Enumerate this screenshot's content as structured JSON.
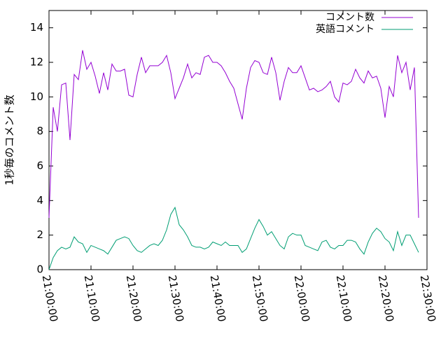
{
  "chart_data": {
    "type": "line",
    "y_label": "1秒毎のコメント数",
    "x": [
      "21:00:00",
      "21:01:00",
      "21:02:00",
      "21:03:00",
      "21:04:00",
      "21:05:00",
      "21:06:00",
      "21:07:00",
      "21:08:00",
      "21:09:00",
      "21:10:00",
      "21:11:00",
      "21:12:00",
      "21:13:00",
      "21:14:00",
      "21:15:00",
      "21:16:00",
      "21:17:00",
      "21:18:00",
      "21:19:00",
      "21:20:00",
      "21:21:00",
      "21:22:00",
      "21:23:00",
      "21:24:00",
      "21:25:00",
      "21:26:00",
      "21:27:00",
      "21:28:00",
      "21:29:00",
      "21:30:00",
      "21:31:00",
      "21:32:00",
      "21:33:00",
      "21:34:00",
      "21:35:00",
      "21:36:00",
      "21:37:00",
      "21:38:00",
      "21:39:00",
      "21:40:00",
      "21:41:00",
      "21:42:00",
      "21:43:00",
      "21:44:00",
      "21:45:00",
      "21:46:00",
      "21:47:00",
      "21:48:00",
      "21:49:00",
      "21:50:00",
      "21:51:00",
      "21:52:00",
      "21:53:00",
      "21:54:00",
      "21:55:00",
      "21:56:00",
      "21:57:00",
      "21:58:00",
      "21:59:00",
      "22:00:00",
      "22:01:00",
      "22:02:00",
      "22:03:00",
      "22:04:00",
      "22:05:00",
      "22:06:00",
      "22:07:00",
      "22:08:00",
      "22:09:00",
      "22:10:00",
      "22:11:00",
      "22:12:00",
      "22:13:00",
      "22:14:00",
      "22:15:00",
      "22:16:00",
      "22:17:00",
      "22:18:00",
      "22:19:00",
      "22:20:00",
      "22:21:00",
      "22:22:00",
      "22:23:00",
      "22:24:00",
      "22:25:00",
      "22:26:00",
      "22:27:00",
      "22:28:00"
    ],
    "series": [
      {
        "name": "コメント数",
        "color": "#9400d3",
        "values": [
          3.0,
          9.4,
          8.0,
          10.7,
          10.8,
          7.5,
          11.3,
          11.0,
          12.7,
          11.6,
          12.0,
          11.2,
          10.2,
          11.4,
          10.4,
          11.9,
          11.5,
          11.5,
          11.6,
          10.1,
          10.0,
          11.3,
          12.3,
          11.4,
          11.8,
          11.8,
          11.8,
          12.0,
          12.4,
          11.4,
          9.9,
          10.5,
          11.1,
          11.9,
          11.1,
          11.4,
          11.3,
          12.3,
          12.4,
          12.0,
          12.0,
          11.8,
          11.4,
          10.9,
          10.5,
          9.6,
          8.7,
          10.5,
          11.7,
          12.1,
          12.0,
          11.4,
          11.3,
          12.3,
          11.4,
          9.8,
          10.9,
          11.7,
          11.4,
          11.4,
          11.8,
          11.1,
          10.4,
          10.5,
          10.3,
          10.4,
          10.6,
          10.9,
          10.0,
          9.7,
          10.8,
          10.7,
          10.9,
          11.6,
          11.1,
          10.8,
          11.5,
          11.1,
          11.2,
          10.5,
          8.8,
          10.6,
          10.0,
          12.4,
          11.4,
          12.0,
          10.4,
          11.7,
          3.0
        ]
      },
      {
        "name": "英語コメント",
        "color": "#009e73",
        "values": [
          0,
          0.7,
          1.1,
          1.3,
          1.2,
          1.3,
          1.9,
          1.6,
          1.5,
          1.0,
          1.4,
          1.3,
          1.2,
          1.1,
          0.9,
          1.3,
          1.7,
          1.8,
          1.9,
          1.8,
          1.4,
          1.1,
          1.0,
          1.2,
          1.4,
          1.5,
          1.4,
          1.7,
          2.3,
          3.2,
          3.6,
          2.6,
          2.3,
          1.9,
          1.4,
          1.3,
          1.3,
          1.2,
          1.3,
          1.6,
          1.5,
          1.4,
          1.6,
          1.4,
          1.4,
          1.4,
          1.0,
          1.2,
          1.8,
          2.4,
          2.9,
          2.5,
          2.0,
          2.2,
          1.8,
          1.4,
          1.2,
          1.9,
          2.1,
          2.0,
          2.0,
          1.4,
          1.3,
          1.2,
          1.1,
          1.6,
          1.7,
          1.3,
          1.2,
          1.4,
          1.4,
          1.7,
          1.7,
          1.6,
          1.2,
          0.9,
          1.6,
          2.1,
          2.4,
          2.2,
          1.8,
          1.6,
          1.1,
          2.2,
          1.4,
          2.0,
          2.0,
          1.5,
          1.0
        ]
      }
    ],
    "xlim": [
      "21:00:00",
      "22:30:00"
    ],
    "xticks": [
      "21:00:00",
      "21:10:00",
      "21:20:00",
      "21:30:00",
      "21:40:00",
      "21:50:00",
      "22:00:00",
      "22:10:00",
      "22:20:00",
      "22:30:00"
    ],
    "ylim": [
      0,
      15
    ],
    "yticks": [
      0,
      2,
      4,
      6,
      8,
      10,
      12,
      14
    ],
    "legend": "top-right"
  }
}
